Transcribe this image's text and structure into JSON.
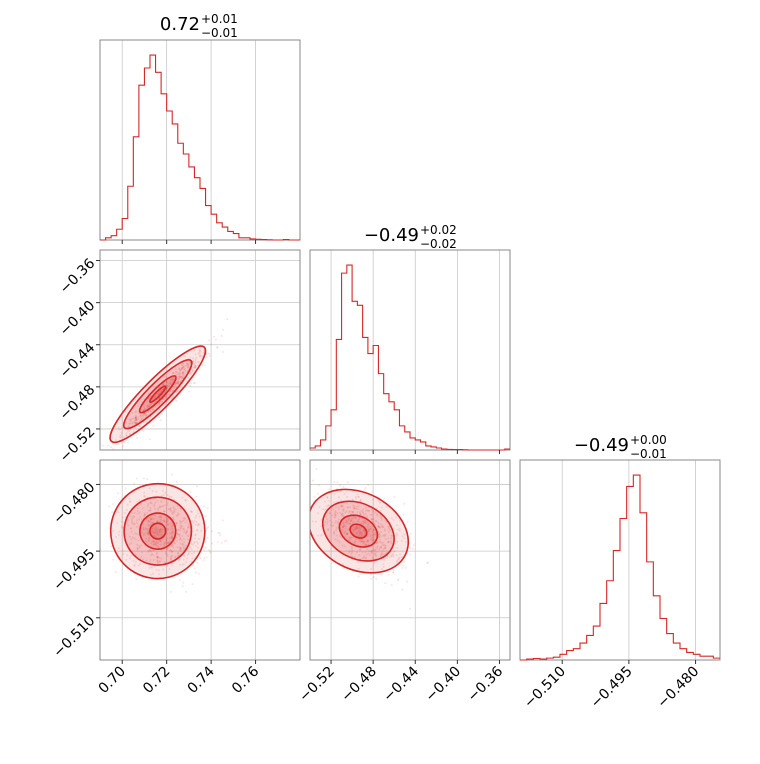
{
  "chart_data": {
    "type": "corner",
    "color": "#d62728",
    "grid": true,
    "parameters": [
      {
        "title": {
          "median": "0.72",
          "plus": "+0.01",
          "minus": "−0.01"
        },
        "range": [
          0.69,
          0.78
        ],
        "ticks": [
          0.7,
          0.72,
          0.74,
          0.76
        ],
        "tick_labels": [
          "0.70",
          "0.72",
          "0.74",
          "0.76"
        ],
        "hist_bins": [
          0.69,
          0.6925,
          0.695,
          0.6975,
          0.7,
          0.7025,
          0.705,
          0.7075,
          0.71,
          0.7125,
          0.715,
          0.7175,
          0.72,
          0.7225,
          0.725,
          0.7275,
          0.73,
          0.7325,
          0.735,
          0.7375,
          0.74,
          0.7425,
          0.745,
          0.7475,
          0.75,
          0.7525,
          0.755,
          0.7575,
          0.76,
          0.7625,
          0.765,
          0.7675,
          0.77,
          0.7725,
          0.775,
          0.7775,
          0.78
        ],
        "hist_counts": [
          0,
          1,
          2,
          5,
          10,
          25,
          48,
          72,
          80,
          86,
          78,
          68,
          60,
          54,
          45,
          40,
          34,
          29,
          24,
          16,
          12,
          8,
          6,
          4,
          3,
          1,
          1,
          0.5,
          0.3,
          0.2,
          0.1,
          0,
          0,
          0.2,
          0,
          0
        ]
      },
      {
        "title": {
          "median": "−0.49",
          "plus": "+0.02",
          "minus": "−0.02"
        },
        "range": [
          -0.54,
          -0.35
        ],
        "ticks": [
          -0.52,
          -0.48,
          -0.44,
          -0.4,
          -0.36
        ],
        "tick_labels": [
          "−0.52",
          "−0.48",
          "−0.44",
          "−0.40",
          "−0.36"
        ],
        "hist_bins": [
          -0.54,
          -0.535,
          -0.53,
          -0.525,
          -0.52,
          -0.515,
          -0.51,
          -0.505,
          -0.5,
          -0.495,
          -0.49,
          -0.485,
          -0.48,
          -0.475,
          -0.47,
          -0.465,
          -0.46,
          -0.455,
          -0.45,
          -0.445,
          -0.44,
          -0.435,
          -0.43,
          -0.425,
          -0.42,
          -0.415,
          -0.41,
          -0.405,
          -0.4,
          -0.395,
          -0.39,
          -0.385,
          -0.38,
          -0.375,
          -0.37,
          -0.365,
          -0.36,
          -0.355,
          -0.35
        ],
        "hist_counts": [
          1,
          2,
          5,
          12,
          20,
          55,
          88,
          92,
          74,
          72,
          56,
          48,
          52,
          38,
          28,
          24,
          20,
          12,
          9,
          6,
          5,
          4,
          2,
          1.5,
          1,
          0.5,
          0.3,
          0.2,
          0.2,
          0.1,
          0,
          0,
          0,
          0,
          0,
          0,
          0,
          0.5
        ]
      },
      {
        "title": {
          "median": "−0.49",
          "plus": "+0.00",
          "minus": "−0.01"
        },
        "range": [
          -0.5195,
          -0.4745
        ],
        "ticks": [
          -0.51,
          -0.495,
          -0.48
        ],
        "tick_labels": [
          "−0.510",
          "−0.495",
          "−0.480"
        ],
        "hist_bins": [
          -0.5195,
          -0.518,
          -0.5165,
          -0.515,
          -0.5135,
          -0.512,
          -0.5105,
          -0.509,
          -0.5075,
          -0.506,
          -0.5045,
          -0.503,
          -0.5015,
          -0.5,
          -0.4985,
          -0.497,
          -0.4955,
          -0.494,
          -0.4925,
          -0.491,
          -0.4895,
          -0.488,
          -0.4865,
          -0.485,
          -0.4835,
          -0.482,
          -0.4805,
          -0.479,
          -0.4775,
          -0.476,
          -0.4745
        ],
        "hist_counts": [
          0,
          0.5,
          0.8,
          0.5,
          1,
          1.5,
          3,
          5,
          6,
          9,
          13,
          18,
          30,
          42,
          58,
          75,
          92,
          98,
          78,
          52,
          34,
          22,
          14,
          9,
          6,
          4,
          3,
          2,
          2,
          1
        ]
      }
    ],
    "contour_levels": 3
  }
}
